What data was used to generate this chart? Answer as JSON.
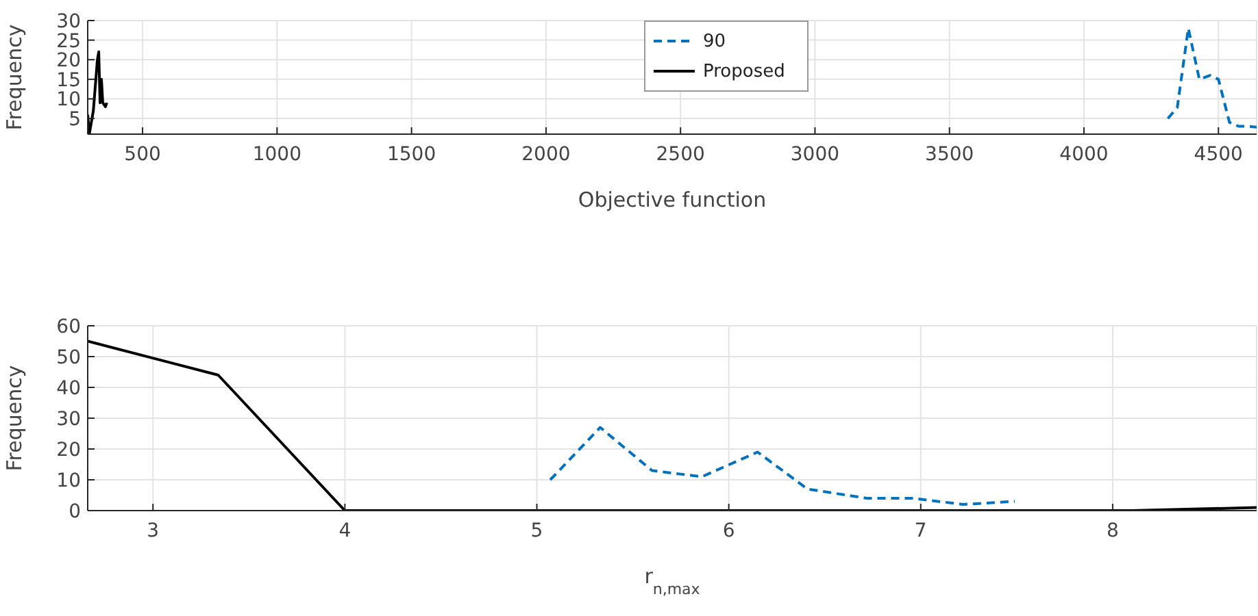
{
  "chart_data": [
    {
      "type": "line",
      "xlabel": "Objective function",
      "ylabel": "Frequency",
      "xlim": [
        296,
        4642
      ],
      "xticks": [
        500,
        1000,
        1500,
        2000,
        2500,
        3000,
        3500,
        4000,
        4500
      ],
      "ylim": [
        1,
        30
      ],
      "yticks": [
        5,
        10,
        15,
        20,
        25,
        30
      ],
      "grid": true,
      "legend": "top",
      "marker": "none",
      "series": [
        {
          "name": "90",
          "color": "#0072bd",
          "line_style": "dashed",
          "x": [
            4312,
            4347,
            4388,
            4429,
            4469,
            4500,
            4541,
            4576,
            4612,
            4642
          ],
          "values": [
            5,
            7.8,
            28,
            15,
            16,
            15,
            4,
            3,
            3,
            2.8
          ]
        },
        {
          "name": "Proposed",
          "color": "#000000",
          "line_style": "solid",
          "x": [
            296,
            302,
            317,
            332,
            337,
            342,
            347,
            352,
            362,
            367
          ],
          "values": [
            6,
            1,
            7,
            20,
            22,
            9,
            15,
            9,
            8,
            9
          ]
        }
      ]
    },
    {
      "type": "line",
      "xlabel": "r$_{n,max}$",
      "ylabel": "Frequency",
      "xlim": [
        2.66,
        8.75
      ],
      "xticks": [
        3,
        4,
        5,
        6,
        7,
        8
      ],
      "ylim": [
        0,
        60
      ],
      "yticks": [
        0,
        10,
        20,
        30,
        40,
        50,
        60
      ],
      "grid": true,
      "marker": "none",
      "series": [
        {
          "color": "#0072bd",
          "line_style": "dashed",
          "x": [
            5.07,
            5.33,
            5.6,
            5.86,
            6.15,
            6.41,
            6.72,
            6.96,
            7.22,
            7.49
          ],
          "values": [
            10,
            27,
            13,
            11,
            19,
            7,
            4,
            4,
            2,
            3
          ]
        },
        {
          "color": "#000000",
          "line_style": "solid",
          "x": [
            2.66,
            3.34,
            4,
            8.1,
            8.75
          ],
          "values": [
            55,
            44,
            0,
            0,
            1
          ]
        }
      ]
    }
  ]
}
